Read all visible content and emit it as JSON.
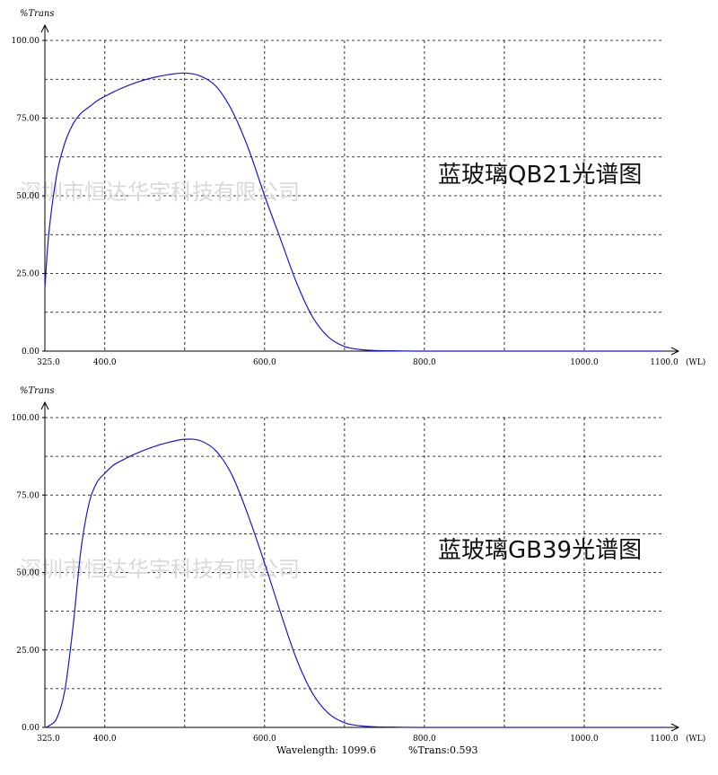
{
  "chart_data": [
    {
      "type": "line",
      "title": "蓝玻璃QB21光谱图",
      "watermark": "深圳市恒达华宇科技有限公司",
      "ylabel": "%Trans",
      "xunit": "(WL)",
      "xlim": [
        325,
        1100
      ],
      "ylim": [
        0,
        100
      ],
      "x_tick_labels": [
        "325.0",
        "400.0",
        "600.0",
        "800.0",
        "1000.0",
        "1100.0"
      ],
      "y_tick_labels": [
        "0.00",
        "25.00",
        "50.00",
        "75.00",
        "100.00"
      ],
      "grid": true,
      "series": [
        {
          "color": "#1a1ad0",
          "x": [
            325,
            330,
            340,
            350,
            360,
            370,
            380,
            390,
            400,
            420,
            440,
            460,
            480,
            500,
            520,
            540,
            560,
            580,
            600,
            620,
            640,
            660,
            680,
            700,
            720,
            740,
            760,
            800,
            900,
            1000,
            1100
          ],
          "y": [
            20,
            38,
            57,
            67,
            73,
            76.5,
            78.5,
            80.5,
            82,
            84.5,
            86.5,
            88,
            89,
            89.5,
            88.5,
            85,
            77,
            65,
            50,
            36,
            22,
            11,
            4.5,
            1.5,
            0.5,
            0.2,
            0.1,
            0,
            0,
            0,
            0
          ]
        }
      ]
    },
    {
      "type": "line",
      "title": "蓝玻璃GB39光谱图",
      "watermark": "深圳市恒达华宇科技有限公司",
      "ylabel": "%Trans",
      "xunit": "(WL)",
      "xlim": [
        325,
        1100
      ],
      "ylim": [
        0,
        100
      ],
      "x_tick_labels": [
        "325.0",
        "400.0",
        "600.0",
        "800.0",
        "1000.0",
        "1100.0"
      ],
      "y_tick_labels": [
        "0.00",
        "25.00",
        "50.00",
        "75.00",
        "100.00"
      ],
      "grid": true,
      "series": [
        {
          "color": "#1a1ad0",
          "x": [
            325,
            330,
            340,
            350,
            360,
            370,
            380,
            390,
            400,
            410,
            420,
            440,
            460,
            480,
            500,
            520,
            540,
            560,
            580,
            600,
            620,
            640,
            660,
            680,
            700,
            720,
            740,
            760,
            800,
            900,
            1000,
            1100
          ],
          "y": [
            0,
            0.5,
            3,
            12,
            32,
            57,
            72,
            79,
            82,
            84.5,
            86,
            88.5,
            90.5,
            92,
            93,
            92.5,
            89,
            81,
            68,
            53,
            37,
            22,
            11,
            4.5,
            1.5,
            0.5,
            0.2,
            0.1,
            0,
            0,
            0,
            0
          ]
        }
      ]
    }
  ],
  "status": {
    "wavelength": "Wavelength: 1099.6",
    "trans": "%Trans:0.593"
  }
}
